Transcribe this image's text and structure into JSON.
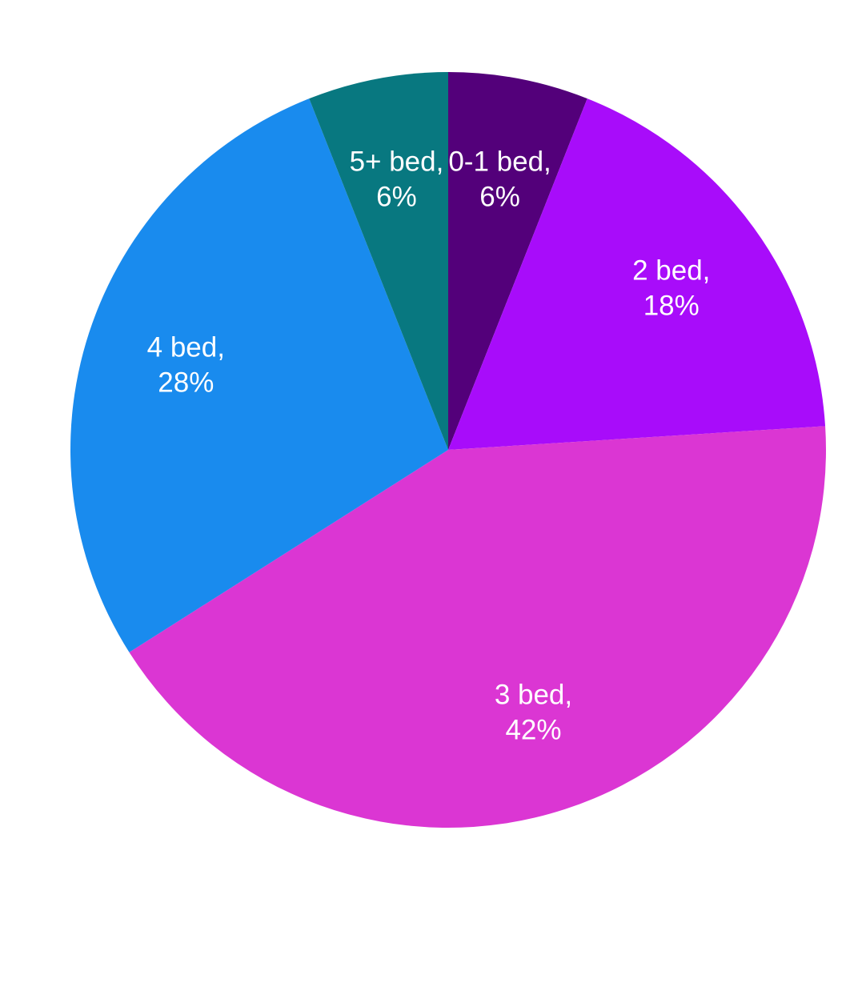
{
  "chart_data": {
    "type": "pie",
    "title": "",
    "slices": [
      {
        "category": "0-1 bed",
        "value": 6,
        "label_line1": "0-1 bed,",
        "label_line2": "6%",
        "color": "#53007a"
      },
      {
        "category": "2 bed",
        "value": 18,
        "label_line1": "2 bed,",
        "label_line2": "18%",
        "color": "#a80cfa"
      },
      {
        "category": "3 bed",
        "value": 42,
        "label_line1": "3 bed,",
        "label_line2": "42%",
        "color": "#db36d3"
      },
      {
        "category": "4 bed",
        "value": 28,
        "label_line1": "4 bed,",
        "label_line2": "28%",
        "color": "#198bee"
      },
      {
        "category": "5+ bed",
        "value": 6,
        "label_line1": "5+ bed,",
        "label_line2": "6%",
        "color": "#087880"
      }
    ],
    "legend": "none",
    "start": "top",
    "direction": "clockwise"
  }
}
